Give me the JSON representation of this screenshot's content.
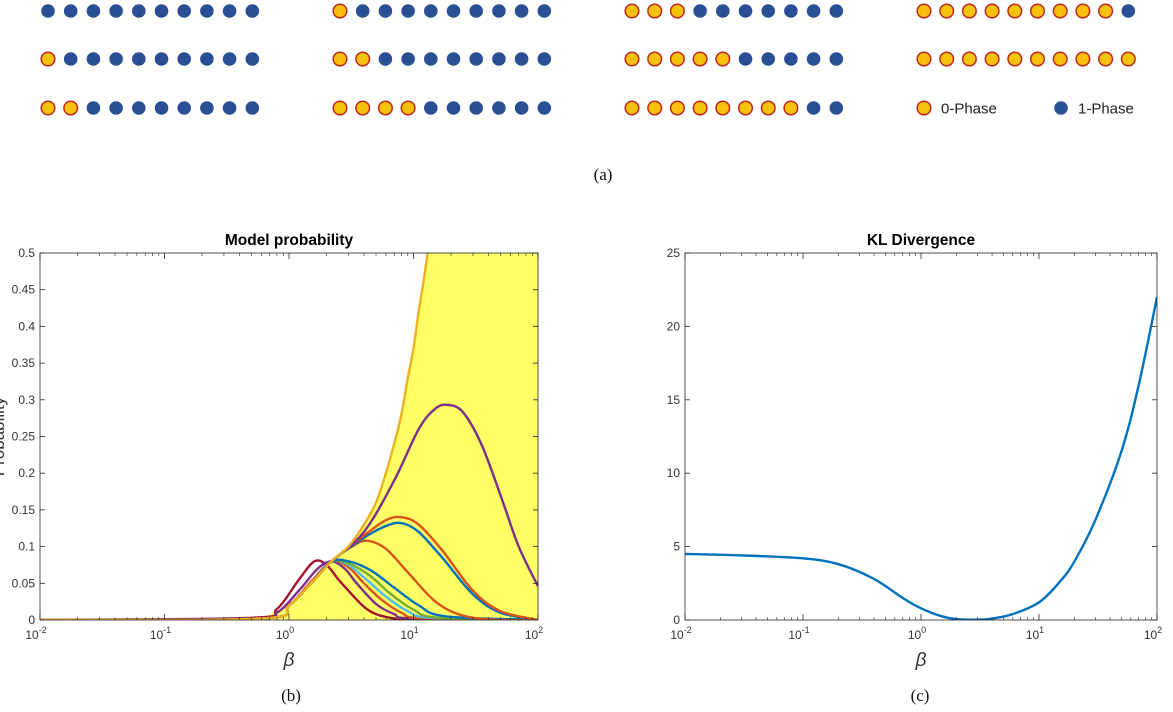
{
  "panel_a": {
    "caption": "(a)",
    "rows": [
      [
        0,
        1,
        3,
        9
      ],
      [
        1,
        2,
        5,
        10
      ],
      [
        2,
        4,
        8,
        "legend"
      ]
    ],
    "dots_per_config": 10,
    "colors": {
      "zero_fill": "#f7c20e",
      "zero_stroke": "#c0281e",
      "one_fill": "#2b4f94"
    },
    "legend": {
      "zero_label": "0-Phase",
      "one_label": "1-Phase"
    }
  },
  "chart_data": [
    {
      "id": "b",
      "type": "line",
      "caption": "(b)",
      "title": "Model probability",
      "xlabel": "β",
      "ylabel": "Probability",
      "xscale": "log",
      "xlim": [
        0.01,
        100
      ],
      "ylim": [
        0,
        0.5
      ],
      "xticks": [
        {
          "v": 0.01,
          "base": "10",
          "exp": "-2"
        },
        {
          "v": 0.1,
          "base": "10",
          "exp": "-1"
        },
        {
          "v": 1,
          "base": "10",
          "exp": "0"
        },
        {
          "v": 10,
          "base": "10",
          "exp": "1"
        },
        {
          "v": 100,
          "base": "10",
          "exp": "2"
        }
      ],
      "yticks": [
        "0",
        "0.05",
        "0.1",
        "0.15",
        "0.2",
        "0.25",
        "0.3",
        "0.35",
        "0.4",
        "0.45",
        "0.5"
      ],
      "fill_color": "#ffff66",
      "series": [
        {
          "color": "#a2142f",
          "points": [
            [
              0.01,
              0
            ],
            [
              0.5,
              0.003
            ],
            [
              0.8,
              0.015
            ],
            [
              1.2,
              0.055
            ],
            [
              1.6,
              0.08
            ],
            [
              2,
              0.075
            ],
            [
              2.5,
              0.055
            ],
            [
              3,
              0.04
            ],
            [
              4,
              0.018
            ],
            [
              5,
              0.008
            ],
            [
              7,
              0.002
            ],
            [
              10,
              0
            ],
            [
              100,
              0
            ]
          ]
        },
        {
          "color": "#7e2f8e",
          "points": [
            [
              0.01,
              0
            ],
            [
              0.5,
              0.002
            ],
            [
              0.8,
              0.01
            ],
            [
              1.2,
              0.04
            ],
            [
              1.7,
              0.07
            ],
            [
              2.2,
              0.08
            ],
            [
              2.8,
              0.07
            ],
            [
              3.5,
              0.05
            ],
            [
              5,
              0.022
            ],
            [
              7,
              0.008
            ],
            [
              10,
              0.002
            ],
            [
              100,
              0
            ]
          ]
        },
        {
          "color": "#d95319",
          "points": [
            [
              0.01,
              0
            ],
            [
              0.6,
              0.002
            ],
            [
              1,
              0.02
            ],
            [
              1.5,
              0.052
            ],
            [
              2.2,
              0.08
            ],
            [
              3,
              0.072
            ],
            [
              4,
              0.05
            ],
            [
              5.5,
              0.028
            ],
            [
              8,
              0.01
            ],
            [
              12,
              0.002
            ],
            [
              100,
              0
            ]
          ]
        },
        {
          "color": "#4dbeee",
          "points": [
            [
              0.01,
              0
            ],
            [
              0.6,
              0.002
            ],
            [
              1,
              0.02
            ],
            [
              1.5,
              0.05
            ],
            [
              2.2,
              0.08
            ],
            [
              3,
              0.075
            ],
            [
              4,
              0.058
            ],
            [
              6,
              0.032
            ],
            [
              9,
              0.012
            ],
            [
              14,
              0.003
            ],
            [
              100,
              0
            ]
          ]
        },
        {
          "color": "#77ac30",
          "points": [
            [
              0.01,
              0
            ],
            [
              0.6,
              0.002
            ],
            [
              1,
              0.02
            ],
            [
              1.5,
              0.05
            ],
            [
              2.2,
              0.079
            ],
            [
              3,
              0.077
            ],
            [
              4.5,
              0.06
            ],
            [
              6.5,
              0.036
            ],
            [
              10,
              0.014
            ],
            [
              16,
              0.003
            ],
            [
              100,
              0
            ]
          ]
        },
        {
          "color": "#0072bd",
          "points": [
            [
              0.01,
              0
            ],
            [
              0.6,
              0.002
            ],
            [
              1,
              0.02
            ],
            [
              1.5,
              0.05
            ],
            [
              2.2,
              0.079
            ],
            [
              3,
              0.08
            ],
            [
              4.5,
              0.068
            ],
            [
              7,
              0.044
            ],
            [
              11,
              0.02
            ],
            [
              18,
              0.005
            ],
            [
              100,
              0
            ]
          ]
        },
        {
          "color": "#d95319",
          "points": [
            [
              0.01,
              0
            ],
            [
              0.6,
              0.002
            ],
            [
              1,
              0.02
            ],
            [
              1.5,
              0.05
            ],
            [
              2.2,
              0.08
            ],
            [
              3.2,
              0.1
            ],
            [
              4.2,
              0.108
            ],
            [
              6,
              0.097
            ],
            [
              9,
              0.065
            ],
            [
              15,
              0.025
            ],
            [
              25,
              0.006
            ],
            [
              50,
              0
            ],
            [
              100,
              0
            ]
          ]
        },
        {
          "color": "#0072bd",
          "points": [
            [
              0.01,
              0
            ],
            [
              0.6,
              0.002
            ],
            [
              1,
              0.02
            ],
            [
              1.5,
              0.05
            ],
            [
              2.2,
              0.08
            ],
            [
              4,
              0.112
            ],
            [
              6,
              0.128
            ],
            [
              8,
              0.132
            ],
            [
              11,
              0.12
            ],
            [
              17,
              0.085
            ],
            [
              30,
              0.035
            ],
            [
              50,
              0.01
            ],
            [
              100,
              0
            ]
          ]
        },
        {
          "color": "#d95319",
          "points": [
            [
              0.01,
              0
            ],
            [
              0.6,
              0.002
            ],
            [
              1,
              0.02
            ],
            [
              1.5,
              0.05
            ],
            [
              2.2,
              0.08
            ],
            [
              4,
              0.115
            ],
            [
              6,
              0.136
            ],
            [
              8,
              0.14
            ],
            [
              11,
              0.13
            ],
            [
              17,
              0.095
            ],
            [
              30,
              0.04
            ],
            [
              50,
              0.012
            ],
            [
              100,
              0
            ]
          ]
        },
        {
          "color": "#7e2f8e",
          "points": [
            [
              0.01,
              0
            ],
            [
              0.6,
              0.002
            ],
            [
              1,
              0.02
            ],
            [
              1.5,
              0.05
            ],
            [
              2.2,
              0.08
            ],
            [
              4,
              0.12
            ],
            [
              7,
              0.19
            ],
            [
              11,
              0.26
            ],
            [
              15,
              0.288
            ],
            [
              19,
              0.293
            ],
            [
              25,
              0.283
            ],
            [
              35,
              0.24
            ],
            [
              50,
              0.17
            ],
            [
              70,
              0.1
            ],
            [
              100,
              0.046
            ]
          ]
        },
        {
          "color": "#edb120",
          "points": [
            [
              0.01,
              0
            ],
            [
              0.6,
              0.002
            ],
            [
              1,
              0.02
            ],
            [
              1.5,
              0.05
            ],
            [
              2.2,
              0.08
            ],
            [
              3,
              0.1
            ],
            [
              4,
              0.13
            ],
            [
              5,
              0.16
            ],
            [
              6,
              0.2
            ],
            [
              7,
              0.24
            ],
            [
              8,
              0.28
            ],
            [
              9,
              0.33
            ],
            [
              10,
              0.37
            ],
            [
              11,
              0.42
            ],
            [
              12,
              0.46
            ],
            [
              13,
              0.5
            ]
          ]
        }
      ]
    },
    {
      "id": "c",
      "type": "line",
      "caption": "(c)",
      "title": "KL Divergence",
      "xlabel": "β",
      "ylabel": "",
      "xscale": "log",
      "xlim": [
        0.01,
        100
      ],
      "ylim": [
        0,
        25
      ],
      "xticks": [
        {
          "v": 0.01,
          "base": "10",
          "exp": "-2"
        },
        {
          "v": 0.1,
          "base": "10",
          "exp": "-1"
        },
        {
          "v": 1,
          "base": "10",
          "exp": "0"
        },
        {
          "v": 10,
          "base": "10",
          "exp": "1"
        },
        {
          "v": 100,
          "base": "10",
          "exp": "2"
        }
      ],
      "yticks": [
        "0",
        "5",
        "10",
        "15",
        "20",
        "25"
      ],
      "series": [
        {
          "color": "#0072bd",
          "points": [
            [
              0.01,
              4.5
            ],
            [
              0.03,
              4.4
            ],
            [
              0.1,
              4.2
            ],
            [
              0.2,
              3.8
            ],
            [
              0.4,
              2.8
            ],
            [
              0.7,
              1.5
            ],
            [
              1,
              0.8
            ],
            [
              1.5,
              0.25
            ],
            [
              2,
              0.06
            ],
            [
              3,
              0.02
            ],
            [
              4,
              0.1
            ],
            [
              6,
              0.4
            ],
            [
              10,
              1.2
            ],
            [
              15,
              2.6
            ],
            [
              20,
              4
            ],
            [
              30,
              6.8
            ],
            [
              50,
              11.5
            ],
            [
              70,
              16
            ],
            [
              100,
              22
            ]
          ]
        }
      ]
    }
  ]
}
